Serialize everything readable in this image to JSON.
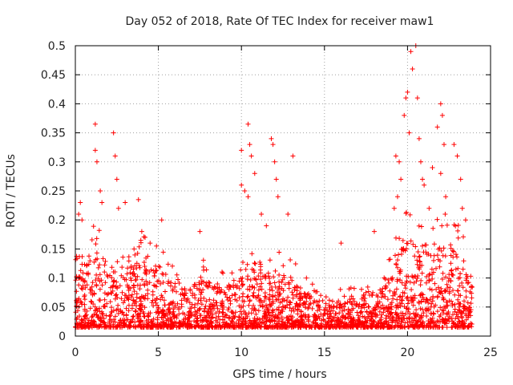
{
  "chart_data": {
    "type": "scatter",
    "title": "Day 052 of 2018, Rate Of TEC Index for receiver maw1",
    "xlabel": "GPS time / hours",
    "ylabel": "ROTI / TECUs",
    "xlim": [
      0,
      25
    ],
    "ylim": [
      0,
      0.5
    ],
    "xticks": [
      0,
      5,
      10,
      15,
      20,
      25
    ],
    "xtick_labels": [
      "0",
      "5",
      "10",
      "15",
      "20",
      "25"
    ],
    "yticks": [
      0,
      0.05,
      0.1,
      0.15,
      0.2,
      0.25,
      0.3,
      0.35,
      0.4,
      0.45,
      0.5
    ],
    "ytick_labels": [
      "0",
      "0.05",
      "0.1",
      "0.15",
      "0.2",
      "0.25",
      "0.3",
      "0.35",
      "0.4",
      "0.45",
      "0.5"
    ],
    "grid": true,
    "marker": "+",
    "series_color": "#ff0000",
    "x_range_hours": [
      0,
      23.9
    ],
    "envelope": {
      "hours": [
        0,
        0.5,
        1,
        1.5,
        2,
        2.5,
        3,
        3.5,
        4,
        4.5,
        5,
        5.5,
        6,
        6.5,
        7,
        7.5,
        8,
        8.5,
        9,
        9.5,
        10,
        10.5,
        11,
        11.5,
        12,
        12.5,
        13,
        13.5,
        14,
        14.5,
        15,
        15.5,
        16,
        16.5,
        17,
        17.5,
        18,
        18.5,
        19,
        19.5,
        20,
        20.5,
        21,
        21.5,
        22,
        22.5,
        23,
        23.5,
        23.9
      ],
      "typical_max": [
        0.1,
        0.12,
        0.14,
        0.13,
        0.12,
        0.12,
        0.11,
        0.12,
        0.13,
        0.12,
        0.12,
        0.1,
        0.08,
        0.07,
        0.08,
        0.1,
        0.09,
        0.08,
        0.08,
        0.08,
        0.1,
        0.12,
        0.1,
        0.1,
        0.11,
        0.1,
        0.1,
        0.08,
        0.07,
        0.06,
        0.05,
        0.05,
        0.06,
        0.06,
        0.06,
        0.07,
        0.07,
        0.08,
        0.1,
        0.14,
        0.16,
        0.15,
        0.14,
        0.14,
        0.16,
        0.15,
        0.14,
        0.12,
        0.1
      ]
    },
    "peaks": [
      {
        "x": 1.2,
        "y": 0.365
      },
      {
        "x": 1.2,
        "y": 0.32
      },
      {
        "x": 1.3,
        "y": 0.3
      },
      {
        "x": 1.5,
        "y": 0.25
      },
      {
        "x": 1.6,
        "y": 0.23
      },
      {
        "x": 0.3,
        "y": 0.23
      },
      {
        "x": 0.2,
        "y": 0.21
      },
      {
        "x": 0.4,
        "y": 0.2
      },
      {
        "x": 2.3,
        "y": 0.35
      },
      {
        "x": 2.4,
        "y": 0.31
      },
      {
        "x": 2.5,
        "y": 0.27
      },
      {
        "x": 2.6,
        "y": 0.22
      },
      {
        "x": 3.0,
        "y": 0.23
      },
      {
        "x": 3.8,
        "y": 0.235
      },
      {
        "x": 4.0,
        "y": 0.18
      },
      {
        "x": 4.5,
        "y": 0.16
      },
      {
        "x": 5.2,
        "y": 0.2
      },
      {
        "x": 4.2,
        "y": 0.17
      },
      {
        "x": 7.5,
        "y": 0.18
      },
      {
        "x": 10.0,
        "y": 0.32
      },
      {
        "x": 10.4,
        "y": 0.365
      },
      {
        "x": 10.5,
        "y": 0.33
      },
      {
        "x": 10.6,
        "y": 0.31
      },
      {
        "x": 10.0,
        "y": 0.26
      },
      {
        "x": 10.2,
        "y": 0.25
      },
      {
        "x": 10.4,
        "y": 0.24
      },
      {
        "x": 10.8,
        "y": 0.28
      },
      {
        "x": 11.8,
        "y": 0.34
      },
      {
        "x": 11.9,
        "y": 0.33
      },
      {
        "x": 12.0,
        "y": 0.3
      },
      {
        "x": 12.1,
        "y": 0.27
      },
      {
        "x": 12.2,
        "y": 0.24
      },
      {
        "x": 13.1,
        "y": 0.31
      },
      {
        "x": 12.8,
        "y": 0.21
      },
      {
        "x": 11.2,
        "y": 0.21
      },
      {
        "x": 11.5,
        "y": 0.19
      },
      {
        "x": 16.0,
        "y": 0.16
      },
      {
        "x": 18.0,
        "y": 0.18
      },
      {
        "x": 19.3,
        "y": 0.31
      },
      {
        "x": 19.5,
        "y": 0.3
      },
      {
        "x": 19.6,
        "y": 0.27
      },
      {
        "x": 19.8,
        "y": 0.38
      },
      {
        "x": 19.9,
        "y": 0.41
      },
      {
        "x": 20.0,
        "y": 0.42
      },
      {
        "x": 20.1,
        "y": 0.35
      },
      {
        "x": 20.2,
        "y": 0.49
      },
      {
        "x": 20.3,
        "y": 0.46
      },
      {
        "x": 20.5,
        "y": 0.5
      },
      {
        "x": 20.6,
        "y": 0.41
      },
      {
        "x": 20.7,
        "y": 0.34
      },
      {
        "x": 20.8,
        "y": 0.3
      },
      {
        "x": 20.9,
        "y": 0.27
      },
      {
        "x": 21.0,
        "y": 0.26
      },
      {
        "x": 21.5,
        "y": 0.29
      },
      {
        "x": 21.8,
        "y": 0.36
      },
      {
        "x": 22.0,
        "y": 0.4
      },
      {
        "x": 22.1,
        "y": 0.38
      },
      {
        "x": 22.2,
        "y": 0.33
      },
      {
        "x": 22.0,
        "y": 0.28
      },
      {
        "x": 22.3,
        "y": 0.24
      },
      {
        "x": 22.8,
        "y": 0.33
      },
      {
        "x": 23.0,
        "y": 0.31
      },
      {
        "x": 23.2,
        "y": 0.27
      },
      {
        "x": 23.3,
        "y": 0.22
      },
      {
        "x": 23.5,
        "y": 0.2
      },
      {
        "x": 21.3,
        "y": 0.22
      },
      {
        "x": 19.2,
        "y": 0.22
      },
      {
        "x": 19.4,
        "y": 0.24
      }
    ]
  }
}
